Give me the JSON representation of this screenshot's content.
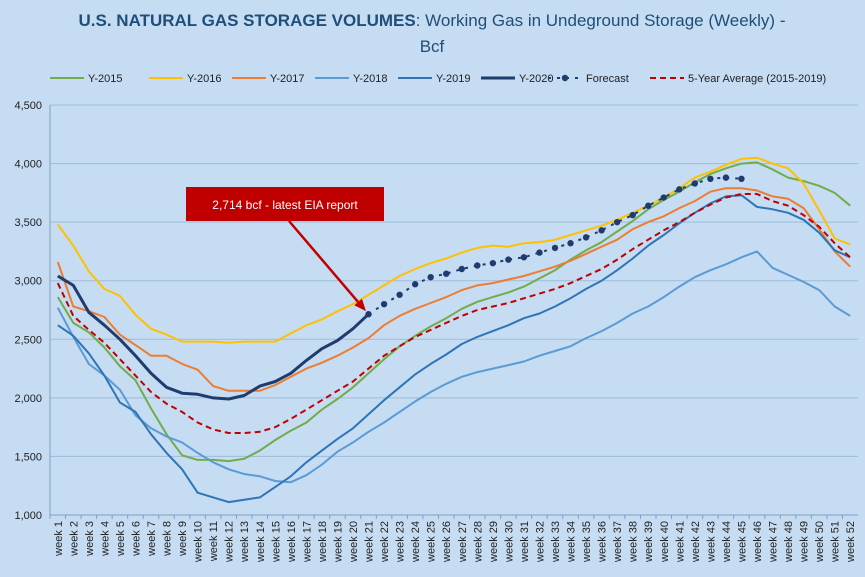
{
  "chart_data": {
    "type": "line",
    "title_bold": "U.S. NATURAL GAS STORAGE VOLUMES",
    "title_rest": ": Working Gas in Undeground Storage (Weekly) -",
    "title_line2": "Bcf",
    "ylim": [
      1000,
      4500
    ],
    "yticks": [
      "1,000",
      "1,500",
      "2,000",
      "2,500",
      "3,000",
      "3,500",
      "4,000",
      "4,500"
    ],
    "ytick_values": [
      1000,
      1500,
      2000,
      2500,
      3000,
      3500,
      4000,
      4500
    ],
    "grid": true,
    "legend_position": "top",
    "categories": [
      "week 1",
      "week 2",
      "week 3",
      "week 4",
      "week 5",
      "week 6",
      "week 7",
      "week 8",
      "week 9",
      "week 10",
      "week 11",
      "week 12",
      "week 13",
      "week 14",
      "week 15",
      "week 16",
      "week 17",
      "week 18",
      "week 19",
      "week 20",
      "week 21",
      "week 22",
      "week 23",
      "week 24",
      "week 25",
      "week 26",
      "week 27",
      "week 28",
      "week 29",
      "week 30",
      "week 31",
      "week 32",
      "week 33",
      "week 34",
      "week 35",
      "week 36",
      "week 37",
      "week 38",
      "week 39",
      "week 40",
      "week 41",
      "week 42",
      "week 43",
      "week 44",
      "week 45",
      "week 46",
      "week 47",
      "week 48",
      "week 49",
      "week 50",
      "week 51",
      "week 52"
    ],
    "series": [
      {
        "name": "Y-2015",
        "color": "#70ad47",
        "width": 2,
        "dash": "",
        "values": [
          2860,
          2640,
          2560,
          2430,
          2270,
          2150,
          1910,
          1690,
          1510,
          1470,
          1470,
          1460,
          1480,
          1550,
          1640,
          1720,
          1790,
          1900,
          1990,
          2090,
          2210,
          2330,
          2440,
          2530,
          2610,
          2680,
          2760,
          2820,
          2860,
          2900,
          2950,
          3020,
          3090,
          3180,
          3260,
          3330,
          3420,
          3510,
          3610,
          3690,
          3760,
          3840,
          3910,
          3960,
          4000,
          4010,
          3950,
          3880,
          3850,
          3810,
          3750,
          3640
        ]
      },
      {
        "name": "Y-2016",
        "color": "#ffc000",
        "width": 2,
        "dash": "",
        "values": [
          3480,
          3300,
          3080,
          2930,
          2870,
          2710,
          2590,
          2540,
          2480,
          2480,
          2480,
          2470,
          2480,
          2480,
          2480,
          2550,
          2620,
          2670,
          2740,
          2800,
          2880,
          2960,
          3040,
          3100,
          3150,
          3190,
          3240,
          3280,
          3300,
          3290,
          3320,
          3330,
          3350,
          3390,
          3430,
          3470,
          3520,
          3580,
          3640,
          3710,
          3790,
          3880,
          3930,
          3990,
          4040,
          4050,
          4000,
          3960,
          3830,
          3600,
          3360,
          3310
        ]
      },
      {
        "name": "Y-2017",
        "color": "#ed7d31",
        "width": 2,
        "dash": "",
        "values": [
          3160,
          2780,
          2740,
          2690,
          2540,
          2450,
          2360,
          2360,
          2290,
          2240,
          2100,
          2060,
          2060,
          2060,
          2110,
          2180,
          2250,
          2300,
          2360,
          2430,
          2510,
          2620,
          2700,
          2760,
          2810,
          2860,
          2920,
          2960,
          2980,
          3010,
          3040,
          3080,
          3120,
          3170,
          3230,
          3290,
          3350,
          3440,
          3500,
          3550,
          3620,
          3680,
          3760,
          3790,
          3790,
          3770,
          3720,
          3700,
          3620,
          3440,
          3250,
          3120
        ]
      },
      {
        "name": "Y-2018",
        "color": "#5b9bd5",
        "width": 2,
        "dash": "",
        "values": [
          2770,
          2520,
          2290,
          2190,
          2070,
          1850,
          1740,
          1670,
          1620,
          1530,
          1450,
          1390,
          1350,
          1330,
          1290,
          1280,
          1340,
          1430,
          1540,
          1620,
          1710,
          1790,
          1880,
          1970,
          2050,
          2120,
          2180,
          2220,
          2250,
          2280,
          2310,
          2360,
          2400,
          2440,
          2510,
          2570,
          2640,
          2720,
          2780,
          2860,
          2950,
          3030,
          3090,
          3140,
          3200,
          3250,
          3110,
          3050,
          2990,
          2920,
          2780,
          2700
        ]
      },
      {
        "name": "Y-2019",
        "color": "#2e75b6",
        "width": 2,
        "dash": "",
        "values": [
          2620,
          2530,
          2380,
          2190,
          1960,
          1880,
          1690,
          1530,
          1390,
          1190,
          1150,
          1110,
          1130,
          1150,
          1240,
          1330,
          1450,
          1550,
          1650,
          1740,
          1860,
          1980,
          2090,
          2200,
          2290,
          2370,
          2460,
          2520,
          2570,
          2620,
          2680,
          2720,
          2780,
          2850,
          2930,
          3000,
          3090,
          3190,
          3300,
          3390,
          3490,
          3580,
          3660,
          3720,
          3730,
          3630,
          3610,
          3580,
          3520,
          3410,
          3260,
          3200
        ]
      },
      {
        "name": "Y-2020",
        "color": "#1f3c6e",
        "width": 3,
        "dash": "",
        "values": [
          3040,
          2960,
          2730,
          2620,
          2500,
          2360,
          2210,
          2090,
          2040,
          2030,
          2000,
          1990,
          2020,
          2100,
          2140,
          2210,
          2320,
          2420,
          2490,
          2590,
          2714,
          null,
          null,
          null,
          null,
          null,
          null,
          null,
          null,
          null,
          null,
          null,
          null,
          null,
          null,
          null,
          null,
          null,
          null,
          null,
          null,
          null,
          null,
          null,
          null,
          null,
          null,
          null,
          null,
          null,
          null,
          null
        ]
      },
      {
        "name": "Forecast",
        "color": "#1f3c6e",
        "width": 2,
        "dash": "3,6",
        "markers": true,
        "values": [
          null,
          null,
          null,
          null,
          null,
          null,
          null,
          null,
          null,
          null,
          null,
          null,
          null,
          null,
          null,
          null,
          null,
          null,
          null,
          null,
          2714,
          2800,
          2880,
          2970,
          3030,
          3060,
          3100,
          3130,
          3150,
          3180,
          3200,
          3240,
          3280,
          3320,
          3370,
          3430,
          3500,
          3560,
          3640,
          3710,
          3780,
          3830,
          3870,
          3880,
          3870,
          null,
          null,
          null,
          null,
          null,
          null,
          null
        ]
      },
      {
        "name": "5-Year Average (2015-2019)",
        "color": "#c00000",
        "width": 2,
        "dash": "6,4",
        "values": [
          2980,
          2700,
          2580,
          2470,
          2330,
          2190,
          2050,
          1950,
          1880,
          1790,
          1730,
          1700,
          1700,
          1710,
          1750,
          1820,
          1900,
          1980,
          2060,
          2140,
          2250,
          2360,
          2440,
          2520,
          2580,
          2640,
          2700,
          2750,
          2780,
          2810,
          2850,
          2890,
          2930,
          2980,
          3040,
          3100,
          3180,
          3270,
          3350,
          3430,
          3500,
          3580,
          3650,
          3710,
          3740,
          3740,
          3680,
          3640,
          3560,
          3460,
          3320,
          3200
        ]
      }
    ],
    "annotation": {
      "text": "2,714  bcf - latest EIA report",
      "week": 21,
      "value": 2714
    }
  }
}
